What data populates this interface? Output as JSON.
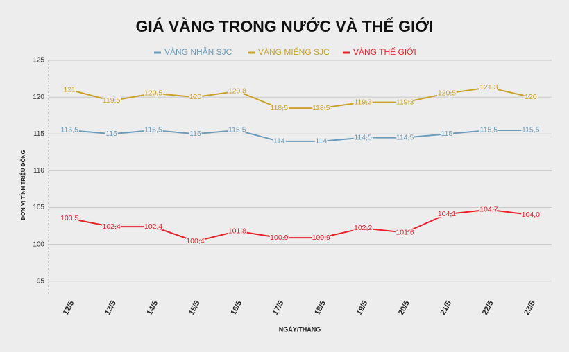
{
  "chart_data": {
    "type": "line",
    "title": "GIÁ VÀNG TRONG NƯỚC VÀ THẾ GIỚI",
    "x_label": "NGÀY/THÁNG",
    "y_label": "ĐƠN VỊ TÍNH TRIỆU ĐỒNG",
    "categories": [
      "12/5",
      "13/5",
      "14/5",
      "15/5",
      "16/5",
      "17/5",
      "18/5",
      "19/5",
      "20/5",
      "21/5",
      "22/5",
      "23/5"
    ],
    "series": [
      {
        "name": "VÀNG NHẪN SJC",
        "color": "#6b9bba",
        "values": [
          115.5,
          115,
          115.5,
          115,
          115.5,
          114,
          114,
          114.5,
          114.5,
          115,
          115.5,
          115.5
        ],
        "value_labels": [
          "115,5",
          "115",
          "115,5",
          "115",
          "115,5",
          "114",
          "114",
          "114,5",
          "114,5",
          "115",
          "115,5",
          "115,5"
        ]
      },
      {
        "name": "VÀNG MIẾNG SJC",
        "color": "#c9a227",
        "values": [
          121,
          119.5,
          120.5,
          120,
          120.8,
          118.5,
          118.5,
          119.3,
          119.3,
          120.5,
          121.3,
          120
        ],
        "value_labels": [
          "121",
          "119,5",
          "120,5",
          "120",
          "120,8",
          "118,5",
          "118,5",
          "119,3",
          "119,3",
          "120,5",
          "121,3",
          "120"
        ]
      },
      {
        "name": "VÀNG THẾ GIỚI",
        "color": "#e8202a",
        "values": [
          103.5,
          102.4,
          102.4,
          100.4,
          101.8,
          100.9,
          100.9,
          102.2,
          101.6,
          104.1,
          104.7,
          104.0
        ],
        "value_labels": [
          "103,5",
          "102,4",
          "102,4",
          "100,4",
          "101,8",
          "100,9",
          "100,9",
          "102,2",
          "101,6",
          "104,1",
          "104,7",
          "104,0"
        ]
      }
    ],
    "ylim": [
      93,
      125
    ],
    "yticks": [
      95,
      100,
      105,
      110,
      115,
      120,
      125
    ],
    "grid": true
  }
}
